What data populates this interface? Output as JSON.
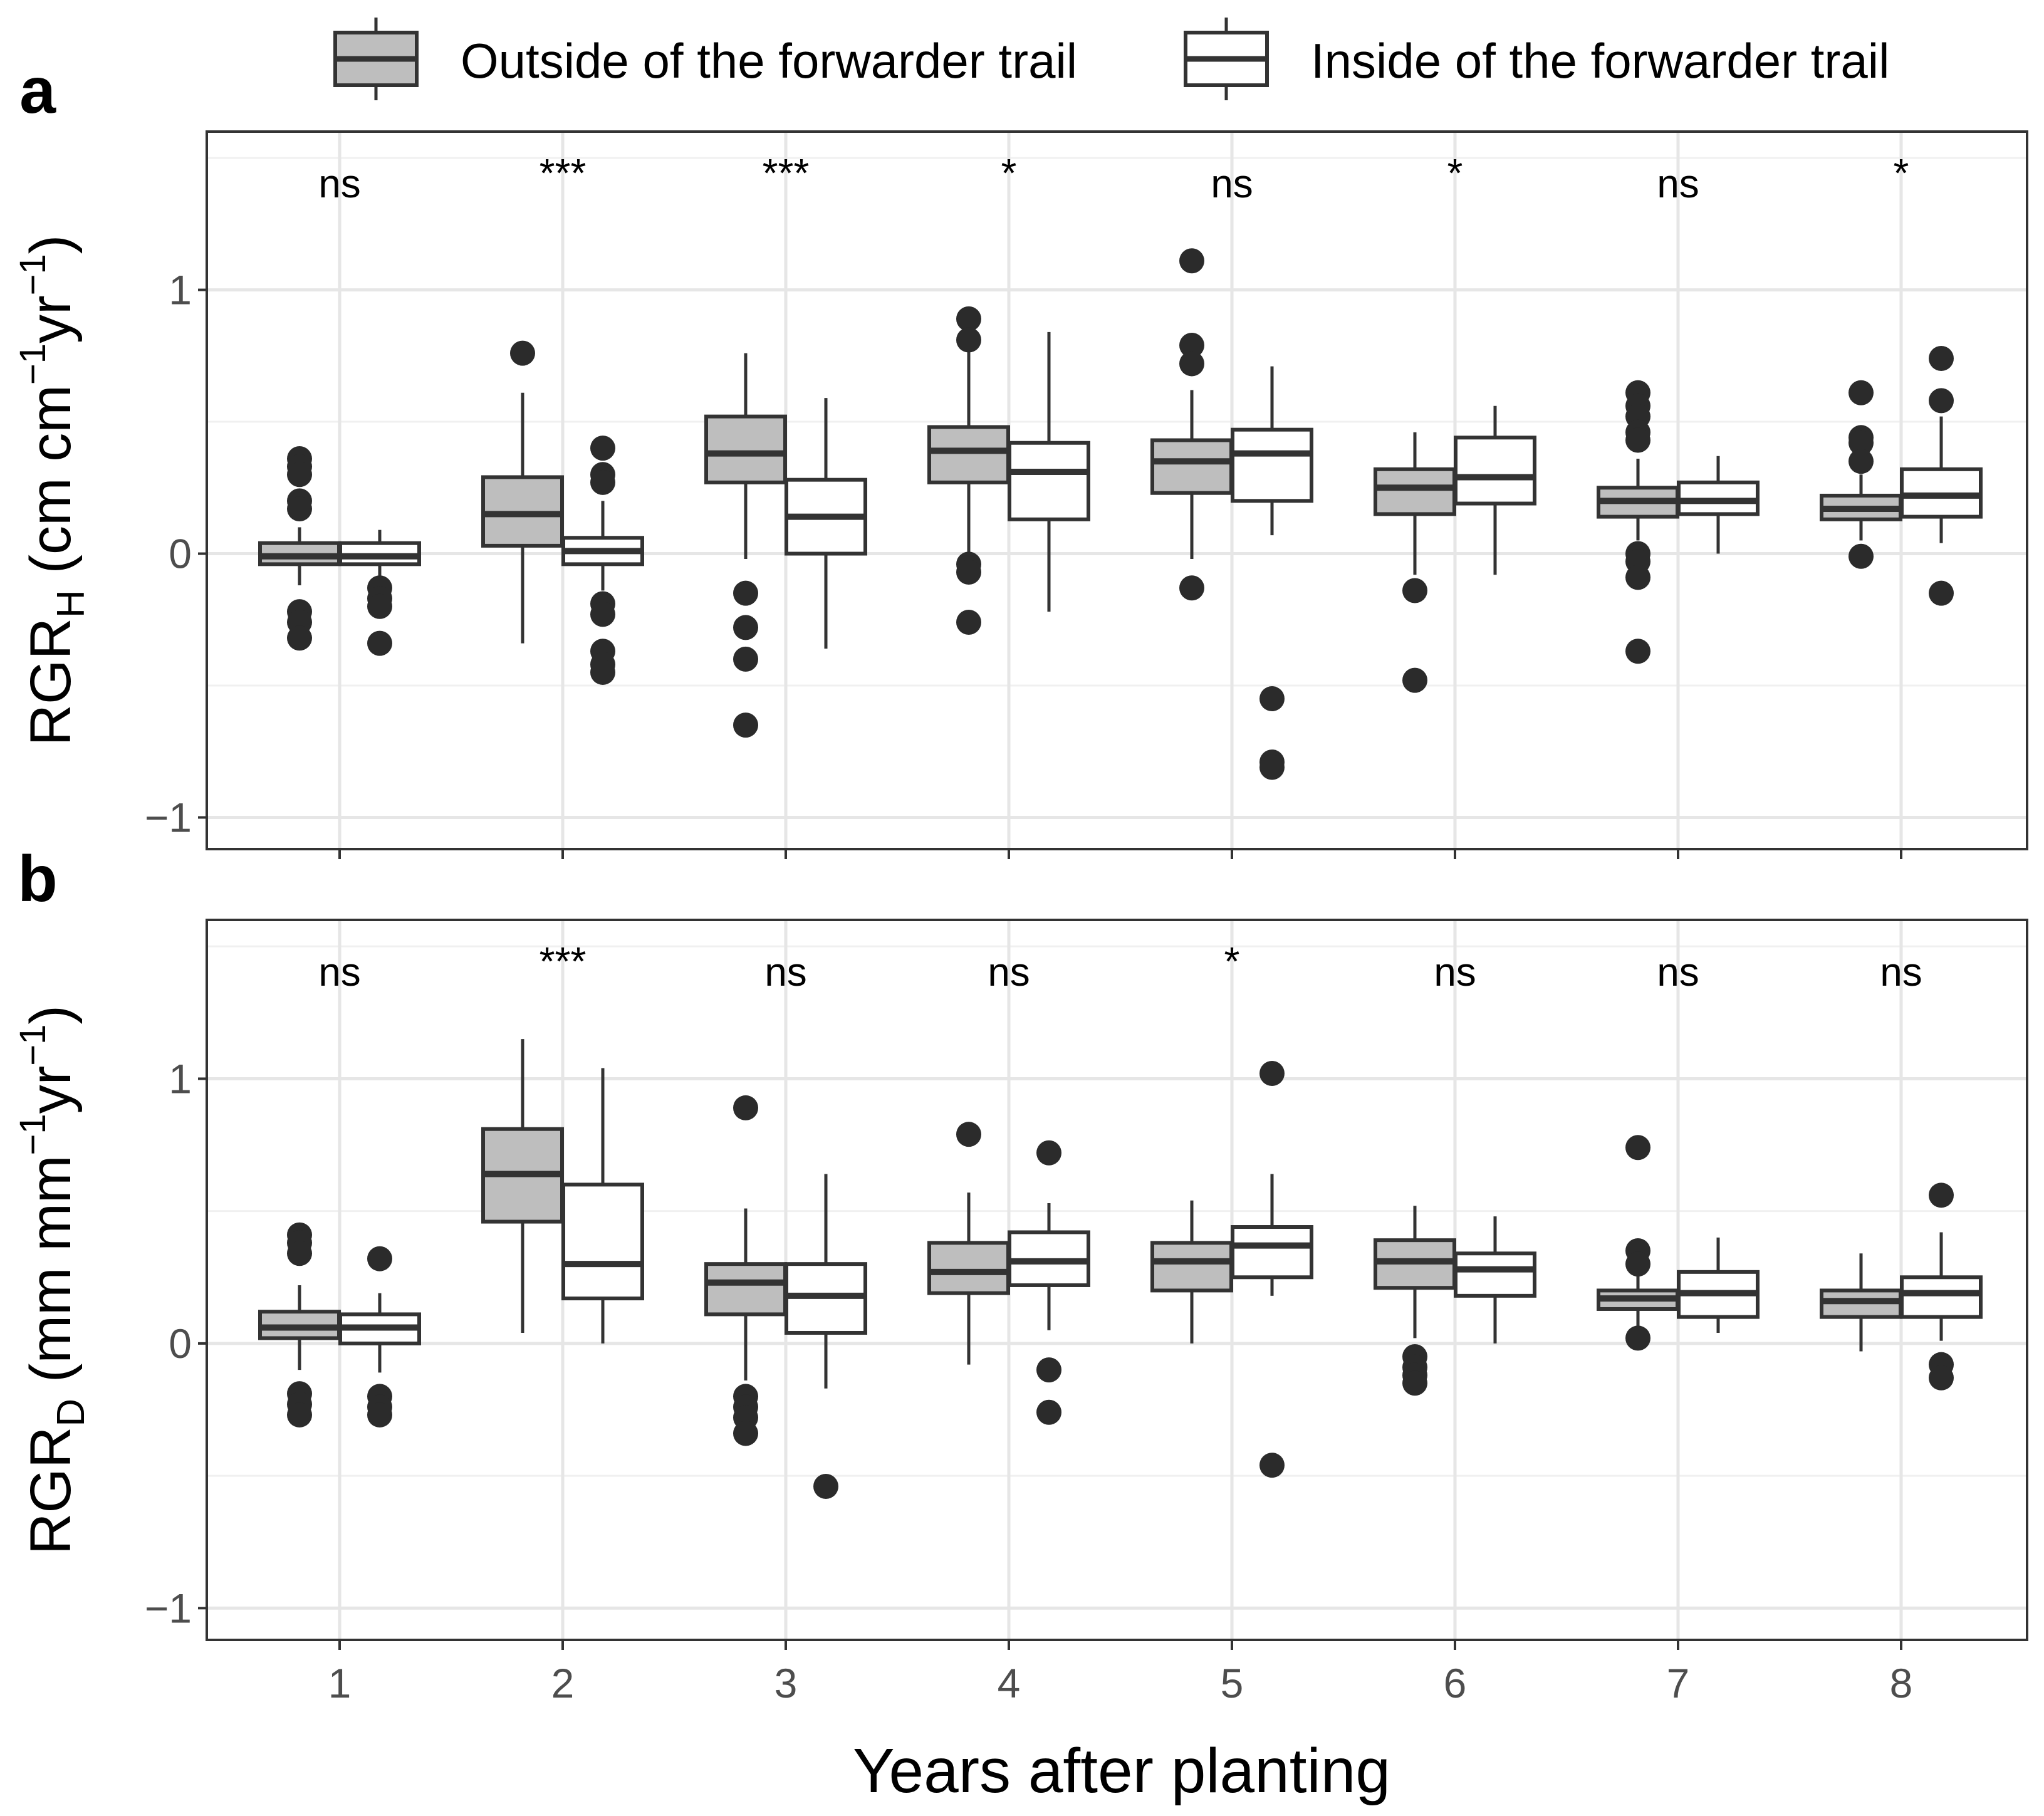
{
  "chart_data": {
    "type": "boxplot",
    "xlabel": "Years after planting",
    "categories": [
      "1",
      "2",
      "3",
      "4",
      "5",
      "6",
      "7",
      "8"
    ],
    "legend": {
      "position": "top",
      "entries": [
        {
          "name": "Outside of the forwarder trail",
          "fill": "#bebebe"
        },
        {
          "name": "Inside of the forwarder trail",
          "fill": "#ffffff"
        }
      ]
    },
    "panels": [
      {
        "letter": "a",
        "ylabel_main": "RGR",
        "ylabel_sub": "H",
        "ylabel_units": "(cm cm",
        "ylabel_units_close": "yr",
        "ylabel_end": ")",
        "exponent": "−1",
        "ylim": [
          -1.12,
          1.6
        ],
        "yticks": [
          {
            "value": -1,
            "label": "−1"
          },
          {
            "value": 0,
            "label": "0"
          },
          {
            "value": 1,
            "label": "1"
          }
        ],
        "significance": [
          "ns",
          "***",
          "***",
          "*",
          "ns",
          "*",
          "ns",
          "*"
        ],
        "series": [
          {
            "name": "Outside of the forwarder trail",
            "boxes": [
              {
                "q1": -0.04,
                "median": -0.01,
                "q3": 0.04,
                "whisker_low": -0.12,
                "whisker_high": 0.1,
                "outliers": [
                  0.36,
                  0.33,
                  0.3,
                  0.2,
                  0.17,
                  -0.22,
                  -0.26,
                  -0.32
                ]
              },
              {
                "q1": 0.03,
                "median": 0.15,
                "q3": 0.29,
                "whisker_low": -0.34,
                "whisker_high": 0.61,
                "outliers": [
                  0.76
                ]
              },
              {
                "q1": 0.27,
                "median": 0.38,
                "q3": 0.52,
                "whisker_low": -0.02,
                "whisker_high": 0.76,
                "outliers": [
                  -0.15,
                  -0.28,
                  -0.4,
                  -0.65
                ]
              },
              {
                "q1": 0.27,
                "median": 0.39,
                "q3": 0.48,
                "whisker_low": -0.01,
                "whisker_high": 0.77,
                "outliers": [
                  0.89,
                  0.81,
                  -0.04,
                  -0.07,
                  -0.26
                ]
              },
              {
                "q1": 0.23,
                "median": 0.35,
                "q3": 0.43,
                "whisker_low": -0.02,
                "whisker_high": 0.62,
                "outliers": [
                  1.11,
                  0.79,
                  0.72,
                  -0.13
                ]
              },
              {
                "q1": 0.15,
                "median": 0.25,
                "q3": 0.32,
                "whisker_low": -0.08,
                "whisker_high": 0.46,
                "outliers": [
                  -0.14,
                  -0.48
                ]
              },
              {
                "q1": 0.14,
                "median": 0.2,
                "q3": 0.25,
                "whisker_low": 0.05,
                "whisker_high": 0.36,
                "outliers": [
                  0.61,
                  0.56,
                  0.52,
                  0.46,
                  0.43,
                  0.0,
                  -0.03,
                  -0.09,
                  -0.37
                ]
              },
              {
                "q1": 0.13,
                "median": 0.17,
                "q3": 0.22,
                "whisker_low": 0.05,
                "whisker_high": 0.3,
                "outliers": [
                  0.61,
                  0.44,
                  0.42,
                  0.35,
                  -0.01
                ]
              }
            ]
          },
          {
            "name": "Inside of the forwarder trail",
            "boxes": [
              {
                "q1": -0.04,
                "median": -0.01,
                "q3": 0.04,
                "whisker_low": -0.12,
                "whisker_high": 0.09,
                "outliers": [
                  -0.13,
                  -0.17,
                  -0.2,
                  -0.34
                ]
              },
              {
                "q1": -0.04,
                "median": 0.01,
                "q3": 0.06,
                "whisker_low": -0.14,
                "whisker_high": 0.2,
                "outliers": [
                  0.4,
                  0.3,
                  0.27,
                  -0.19,
                  -0.23,
                  -0.37,
                  -0.42,
                  -0.45
                ]
              },
              {
                "q1": 0.0,
                "median": 0.14,
                "q3": 0.28,
                "whisker_low": -0.36,
                "whisker_high": 0.59,
                "outliers": []
              },
              {
                "q1": 0.13,
                "median": 0.31,
                "q3": 0.42,
                "whisker_low": -0.22,
                "whisker_high": 0.84,
                "outliers": []
              },
              {
                "q1": 0.2,
                "median": 0.38,
                "q3": 0.47,
                "whisker_low": 0.07,
                "whisker_high": 0.71,
                "outliers": [
                  -0.55,
                  -0.79,
                  -0.81
                ]
              },
              {
                "q1": 0.19,
                "median": 0.29,
                "q3": 0.44,
                "whisker_low": -0.08,
                "whisker_high": 0.56,
                "outliers": []
              },
              {
                "q1": 0.15,
                "median": 0.2,
                "q3": 0.27,
                "whisker_low": 0.0,
                "whisker_high": 0.37,
                "outliers": []
              },
              {
                "q1": 0.14,
                "median": 0.22,
                "q3": 0.32,
                "whisker_low": 0.04,
                "whisker_high": 0.52,
                "outliers": [
                  0.74,
                  0.58,
                  -0.15
                ]
              }
            ]
          }
        ]
      },
      {
        "letter": "b",
        "ylabel_main": "RGR",
        "ylabel_sub": "D",
        "ylabel_units": "(mm mm",
        "ylabel_units_close": "yr",
        "ylabel_end": ")",
        "exponent": "−1",
        "ylim": [
          -1.12,
          1.6
        ],
        "yticks": [
          {
            "value": -1,
            "label": "−1"
          },
          {
            "value": 0,
            "label": "0"
          },
          {
            "value": 1,
            "label": "1"
          }
        ],
        "significance": [
          "ns",
          "***",
          "ns",
          "ns",
          "*",
          "ns",
          "ns",
          "ns"
        ],
        "series": [
          {
            "name": "Outside of the forwarder trail",
            "boxes": [
              {
                "q1": 0.02,
                "median": 0.06,
                "q3": 0.12,
                "whisker_low": -0.1,
                "whisker_high": 0.22,
                "outliers": [
                  0.41,
                  0.38,
                  0.34,
                  -0.19,
                  -0.23,
                  -0.27
                ]
              },
              {
                "q1": 0.46,
                "median": 0.64,
                "q3": 0.81,
                "whisker_low": 0.04,
                "whisker_high": 1.15,
                "outliers": []
              },
              {
                "q1": 0.11,
                "median": 0.23,
                "q3": 0.3,
                "whisker_low": -0.14,
                "whisker_high": 0.51,
                "outliers": [
                  0.89,
                  -0.2,
                  -0.24,
                  -0.28,
                  -0.34
                ]
              },
              {
                "q1": 0.19,
                "median": 0.27,
                "q3": 0.38,
                "whisker_low": -0.08,
                "whisker_high": 0.57,
                "outliers": [
                  0.79
                ]
              },
              {
                "q1": 0.2,
                "median": 0.31,
                "q3": 0.38,
                "whisker_low": 0.0,
                "whisker_high": 0.54,
                "outliers": []
              },
              {
                "q1": 0.21,
                "median": 0.31,
                "q3": 0.39,
                "whisker_low": 0.02,
                "whisker_high": 0.52,
                "outliers": [
                  -0.05,
                  -0.09,
                  -0.12,
                  -0.15
                ]
              },
              {
                "q1": 0.13,
                "median": 0.17,
                "q3": 0.2,
                "whisker_low": 0.05,
                "whisker_high": 0.3,
                "outliers": [
                  0.74,
                  0.35,
                  0.3,
                  0.02
                ]
              },
              {
                "q1": 0.1,
                "median": 0.16,
                "q3": 0.2,
                "whisker_low": -0.03,
                "whisker_high": 0.34,
                "outliers": []
              }
            ]
          },
          {
            "name": "Inside of the forwarder trail",
            "boxes": [
              {
                "q1": 0.0,
                "median": 0.06,
                "q3": 0.11,
                "whisker_low": -0.11,
                "whisker_high": 0.19,
                "outliers": [
                  0.32,
                  -0.2,
                  -0.24,
                  -0.27
                ]
              },
              {
                "q1": 0.17,
                "median": 0.3,
                "q3": 0.6,
                "whisker_low": 0.0,
                "whisker_high": 1.04,
                "outliers": []
              },
              {
                "q1": 0.04,
                "median": 0.18,
                "q3": 0.3,
                "whisker_low": -0.17,
                "whisker_high": 0.64,
                "outliers": [
                  -0.54
                ]
              },
              {
                "q1": 0.22,
                "median": 0.31,
                "q3": 0.42,
                "whisker_low": 0.05,
                "whisker_high": 0.53,
                "outliers": [
                  0.72,
                  -0.1,
                  -0.26
                ]
              },
              {
                "q1": 0.25,
                "median": 0.37,
                "q3": 0.44,
                "whisker_low": 0.18,
                "whisker_high": 0.64,
                "outliers": [
                  1.02,
                  -0.46
                ]
              },
              {
                "q1": 0.18,
                "median": 0.28,
                "q3": 0.34,
                "whisker_low": 0.0,
                "whisker_high": 0.48,
                "outliers": []
              },
              {
                "q1": 0.1,
                "median": 0.19,
                "q3": 0.27,
                "whisker_low": 0.04,
                "whisker_high": 0.4,
                "outliers": []
              },
              {
                "q1": 0.1,
                "median": 0.19,
                "q3": 0.25,
                "whisker_low": 0.01,
                "whisker_high": 0.42,
                "outliers": [
                  0.56,
                  -0.08,
                  -0.13
                ]
              }
            ]
          }
        ]
      }
    ]
  }
}
